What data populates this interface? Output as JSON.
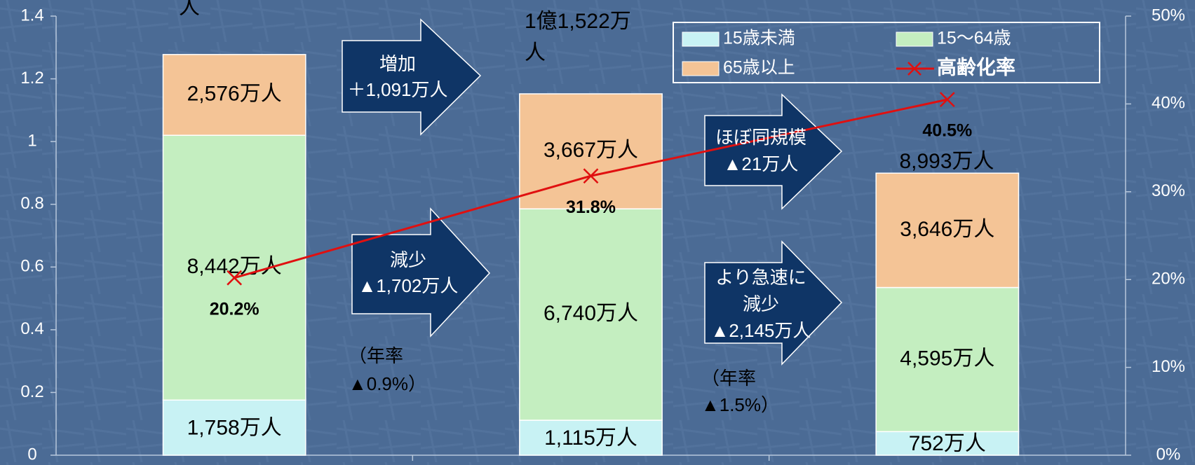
{
  "chart_data": {
    "type": "bar",
    "stacked": true,
    "categories": [
      null,
      null,
      null
    ],
    "ylim": [
      0,
      1.4
    ],
    "yticks": [
      0,
      0.2,
      0.4,
      0.6,
      0.8,
      1,
      1.2,
      1.4
    ],
    "y2lim": [
      0,
      50
    ],
    "y2ticks": [
      {
        "value": 0,
        "label": "0%"
      },
      {
        "value": 10,
        "label": "10%"
      },
      {
        "value": 20,
        "label": "20%"
      },
      {
        "value": 30,
        "label": "30%"
      },
      {
        "value": 40,
        "label": "40%"
      },
      {
        "value": 50,
        "label": "50%"
      }
    ],
    "series": [
      {
        "name": "15歳未満",
        "type": "bar",
        "color": "#c8f2f4",
        "values": [
          0.1758,
          0.1115,
          0.0752
        ],
        "value_labels": [
          "1,758万人",
          "1,115万人",
          "752万人"
        ]
      },
      {
        "name": "15～64歳",
        "type": "bar",
        "color": "#c4eec0",
        "values": [
          0.8442,
          0.674,
          0.4595
        ],
        "value_labels": [
          "8,442万人",
          "6,740万人",
          "4,595万人"
        ]
      },
      {
        "name": "65歳以上",
        "type": "bar",
        "color": "#f4c496",
        "values": [
          0.2576,
          0.3667,
          0.3646
        ],
        "value_labels": [
          "2,576万人",
          "3,667万人",
          "3,646万人"
        ]
      },
      {
        "name": "高齢化率",
        "type": "line",
        "axis": "y2",
        "color": "#e01010",
        "values": [
          20.2,
          31.8,
          40.5
        ],
        "value_labels": [
          "20.2%",
          "31.8%",
          "40.5%"
        ]
      }
    ],
    "legend": "top-right",
    "totals": [
      {
        "lines": [
          "人"
        ]
      },
      {
        "lines": [
          "1億1,522万",
          "人"
        ]
      },
      {
        "lines": [
          "8,993万人"
        ]
      }
    ],
    "arrows": [
      {
        "lines": [
          "増加",
          "＋1,091万人"
        ]
      },
      {
        "lines": [
          "減少",
          "▲1,702万人"
        ]
      },
      {
        "lines": [
          "ほぼ同規模",
          "▲21万人"
        ]
      },
      {
        "lines": [
          "より急速に",
          "減少",
          "▲2,145万人"
        ]
      }
    ],
    "rates": [
      {
        "lines": [
          "（年率",
          "▲0.9%）"
        ]
      },
      {
        "lines": [
          "（年率",
          "▲1.5%）"
        ]
      }
    ]
  }
}
